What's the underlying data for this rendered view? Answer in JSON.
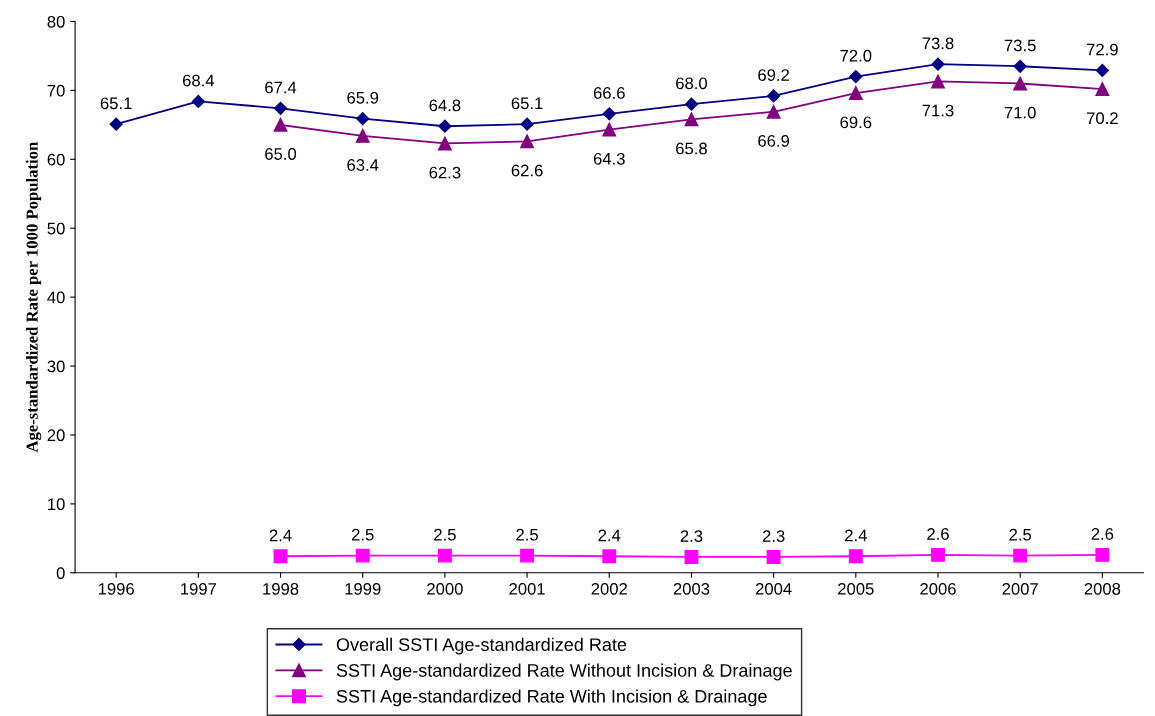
{
  "chart_data": {
    "type": "line",
    "ylabel": "Age-standardized Rate per 1000 Population",
    "categories": [
      "1996",
      "1997",
      "1998",
      "1999",
      "2000",
      "2001",
      "2002",
      "2003",
      "2004",
      "2005",
      "2006",
      "2007",
      "2008"
    ],
    "series": [
      {
        "name": "Overall SSTI Age-standardized Rate",
        "color": "#000080",
        "marker": "diamond",
        "values": [
          65.1,
          68.4,
          67.4,
          65.9,
          64.8,
          65.1,
          66.6,
          68.0,
          69.2,
          72.0,
          73.8,
          73.5,
          72.9
        ],
        "value_labels": [
          "65.1",
          "68.4",
          "67.4",
          "65.9",
          "64.8",
          "65.1",
          "66.6",
          "68.0",
          "69.2",
          "72.0",
          "73.8",
          "73.5",
          "72.9"
        ]
      },
      {
        "name": "SSTI Age-standardized Rate Without Incision & Drainage",
        "color": "#800080",
        "marker": "triangle",
        "values": [
          null,
          null,
          65.0,
          63.4,
          62.3,
          62.6,
          64.3,
          65.8,
          66.9,
          69.6,
          71.3,
          71.0,
          70.2
        ],
        "value_labels": [
          null,
          null,
          "65.0",
          "63.4",
          "62.3",
          "62.6",
          "64.3",
          "65.8",
          "66.9",
          "69.6",
          "71.3",
          "71.0",
          "70.2"
        ]
      },
      {
        "name": "SSTI Age-standardized Rate With Incision & Drainage",
        "color": "#ff00ff",
        "marker": "square",
        "values": [
          null,
          null,
          2.4,
          2.5,
          2.5,
          2.5,
          2.4,
          2.3,
          2.3,
          2.4,
          2.6,
          2.5,
          2.6
        ],
        "value_labels": [
          null,
          null,
          "2.4",
          "2.5",
          "2.5",
          "2.5",
          "2.4",
          "2.3",
          "2.3",
          "2.4",
          "2.6",
          "2.5",
          "2.6"
        ]
      }
    ],
    "ylim": [
      0,
      80
    ],
    "yticks": [
      0,
      10,
      20,
      30,
      40,
      50,
      60,
      70,
      80
    ],
    "legend": "bottom",
    "line_style": "solid"
  }
}
